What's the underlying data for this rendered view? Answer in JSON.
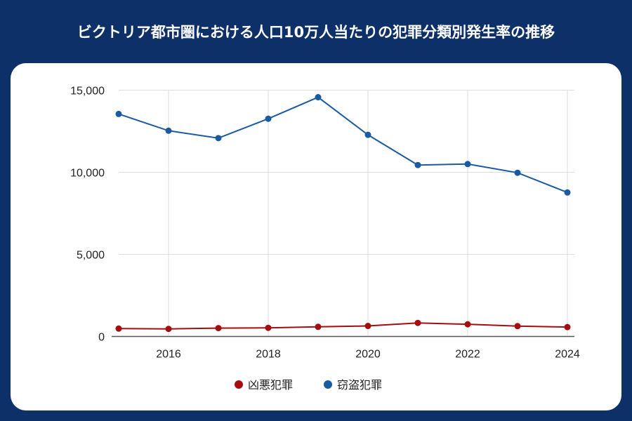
{
  "title": "ビクトリア都市圏における人口10万人当たりの犯罪分類別発生率の推移",
  "chart_data": {
    "type": "line",
    "title": "ビクトリア都市圏における人口10万人当たりの犯罪分類別発生率の推移",
    "x": [
      2015,
      2016,
      2017,
      2018,
      2019,
      2020,
      2021,
      2022,
      2023,
      2024
    ],
    "xlim": [
      2015,
      2024
    ],
    "x_ticks": [
      "2016",
      "2018",
      "2020",
      "2022",
      "2024"
    ],
    "ylim": [
      0,
      15000
    ],
    "y_ticks": [
      "0",
      "5,000",
      "10,000",
      "15,000"
    ],
    "grid": true,
    "legend_position": "bottom",
    "series": [
      {
        "name": "凶悪犯罪",
        "color": "#a50e0e",
        "values": [
          480,
          460,
          510,
          525,
          585,
          640,
          825,
          740,
          630,
          570
        ]
      },
      {
        "name": "窃盗犯罪",
        "color": "#1a5aa0",
        "values": [
          13550,
          12530,
          12080,
          13260,
          14570,
          12280,
          10440,
          10500,
          9970,
          8770
        ]
      }
    ]
  }
}
